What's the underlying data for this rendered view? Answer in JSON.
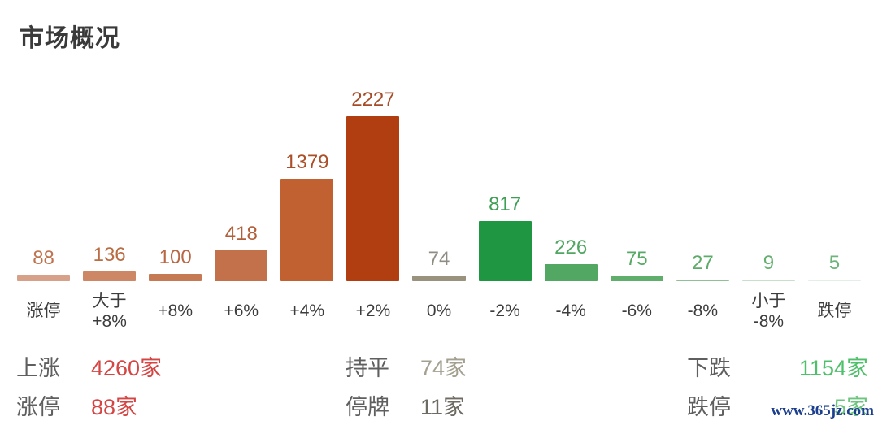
{
  "page": {
    "title": "市场概况"
  },
  "chart_data": {
    "type": "bar",
    "title": "市场概况",
    "categories": [
      "涨停",
      "大于\n+8%",
      "+8%",
      "+6%",
      "+4%",
      "+2%",
      "0%",
      "-2%",
      "-4%",
      "-6%",
      "-8%",
      "小于\n-8%",
      "跌停"
    ],
    "values": [
      88,
      136,
      100,
      418,
      1379,
      2227,
      74,
      817,
      226,
      75,
      27,
      9,
      5
    ],
    "ylim": [
      0,
      2227
    ],
    "grid": false,
    "legend": "none",
    "value_labels_position": "above-bar",
    "bars": [
      {
        "category": "涨停",
        "value": 88,
        "bar_color": "#d6a089",
        "label_color": "#c0734f"
      },
      {
        "category": "大于\n+8%",
        "value": 136,
        "bar_color": "#cd8764",
        "label_color": "#bb6c42"
      },
      {
        "category": "+8%",
        "value": 100,
        "bar_color": "#c67a54",
        "label_color": "#b96845"
      },
      {
        "category": "+6%",
        "value": 418,
        "bar_color": "#c3714a",
        "label_color": "#b25e38"
      },
      {
        "category": "+4%",
        "value": 1379,
        "bar_color": "#c16132",
        "label_color": "#ab4f28"
      },
      {
        "category": "+2%",
        "value": 2227,
        "bar_color": "#b13e10",
        "label_color": "#a54c28"
      },
      {
        "category": "0%",
        "value": 74,
        "bar_color": "#98927e",
        "label_color": "#8f8d83"
      },
      {
        "category": "-2%",
        "value": 817,
        "bar_color": "#1f9642",
        "label_color": "#3f9e55"
      },
      {
        "category": "-4%",
        "value": 226,
        "bar_color": "#52a862",
        "label_color": "#50a662"
      },
      {
        "category": "-6%",
        "value": 75,
        "bar_color": "#5fae6b",
        "label_color": "#57a965"
      },
      {
        "category": "-8%",
        "value": 27,
        "bar_color": "#8fc096",
        "label_color": "#5cab68"
      },
      {
        "category": "小于\n-8%",
        "value": 9,
        "bar_color": "#c8dfcb",
        "label_color": "#66b071"
      },
      {
        "category": "跌停",
        "value": 5,
        "bar_color": "#e3efe5",
        "label_color": "#6db47a"
      }
    ]
  },
  "summary": {
    "label_color": "#5f5f5f",
    "rows": [
      [
        {
          "label": "上涨",
          "value": "4260家",
          "value_color": "#d54543"
        },
        {
          "label": "持平",
          "value": "74家",
          "value_color": "#a3a090"
        },
        {
          "label": "下跌",
          "value": "1154家",
          "value_color": "#4fc06a"
        }
      ],
      [
        {
          "label": "涨停",
          "value": "88家",
          "value_color": "#d54543"
        },
        {
          "label": "停牌",
          "value": "11家",
          "value_color": "#6e6b63"
        },
        {
          "label": "跌停",
          "value": "5家",
          "value_color": "#6cc47f"
        }
      ]
    ]
  },
  "watermark": {
    "text": "www.365jz.com",
    "color": "#1b3e8e"
  }
}
